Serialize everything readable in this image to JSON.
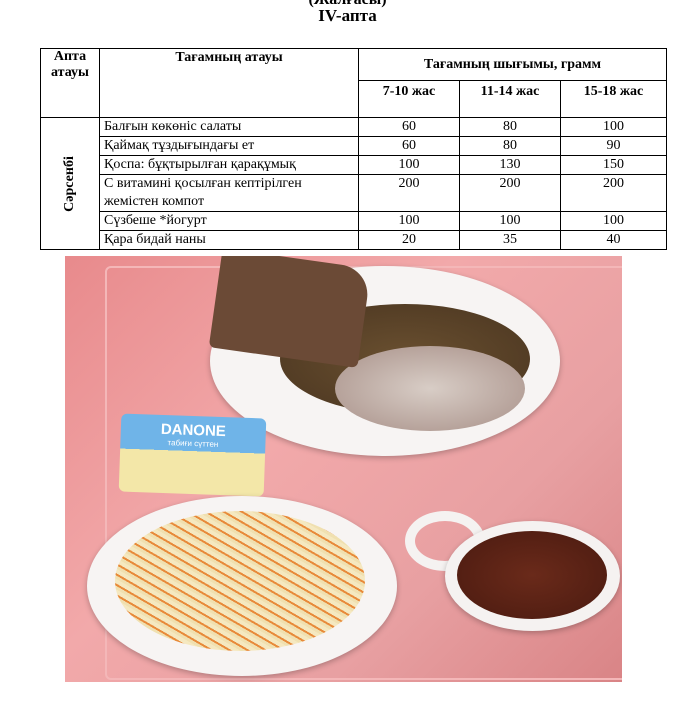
{
  "header": {
    "cut_text": "(Жалғасы)",
    "title": "IV-апта"
  },
  "table": {
    "col_week": "Апта атауы",
    "col_name": "Тағамның атауы",
    "col_yield": "Тағамның шығымы, грамм",
    "age_groups": [
      "7-10 жас",
      "11-14 жас",
      "15-18 жас"
    ],
    "day": "Сәрсенбі",
    "rows": [
      {
        "name": "Балғын көкөніс салаты",
        "v": [
          "60",
          "80",
          "100"
        ]
      },
      {
        "name": "Қаймақ тұздығындағы ет",
        "v": [
          "60",
          "80",
          "90"
        ]
      },
      {
        "name": "Қоспа: бұқтырылған қарақұмық",
        "v": [
          "100",
          "130",
          "150"
        ]
      },
      {
        "name": "С витамині қосылған кептірілген жемістен компот",
        "v": [
          "200",
          "200",
          "200"
        ]
      },
      {
        "name": "Сүзбеше *йогурт",
        "v": [
          "100",
          "100",
          "100"
        ]
      },
      {
        "name": "Қара бидай наны",
        "v": [
          "20",
          "35",
          "40"
        ]
      }
    ]
  },
  "photo": {
    "yogurt_brand": "DANONE",
    "yogurt_sub": "табиғи сүттен"
  }
}
